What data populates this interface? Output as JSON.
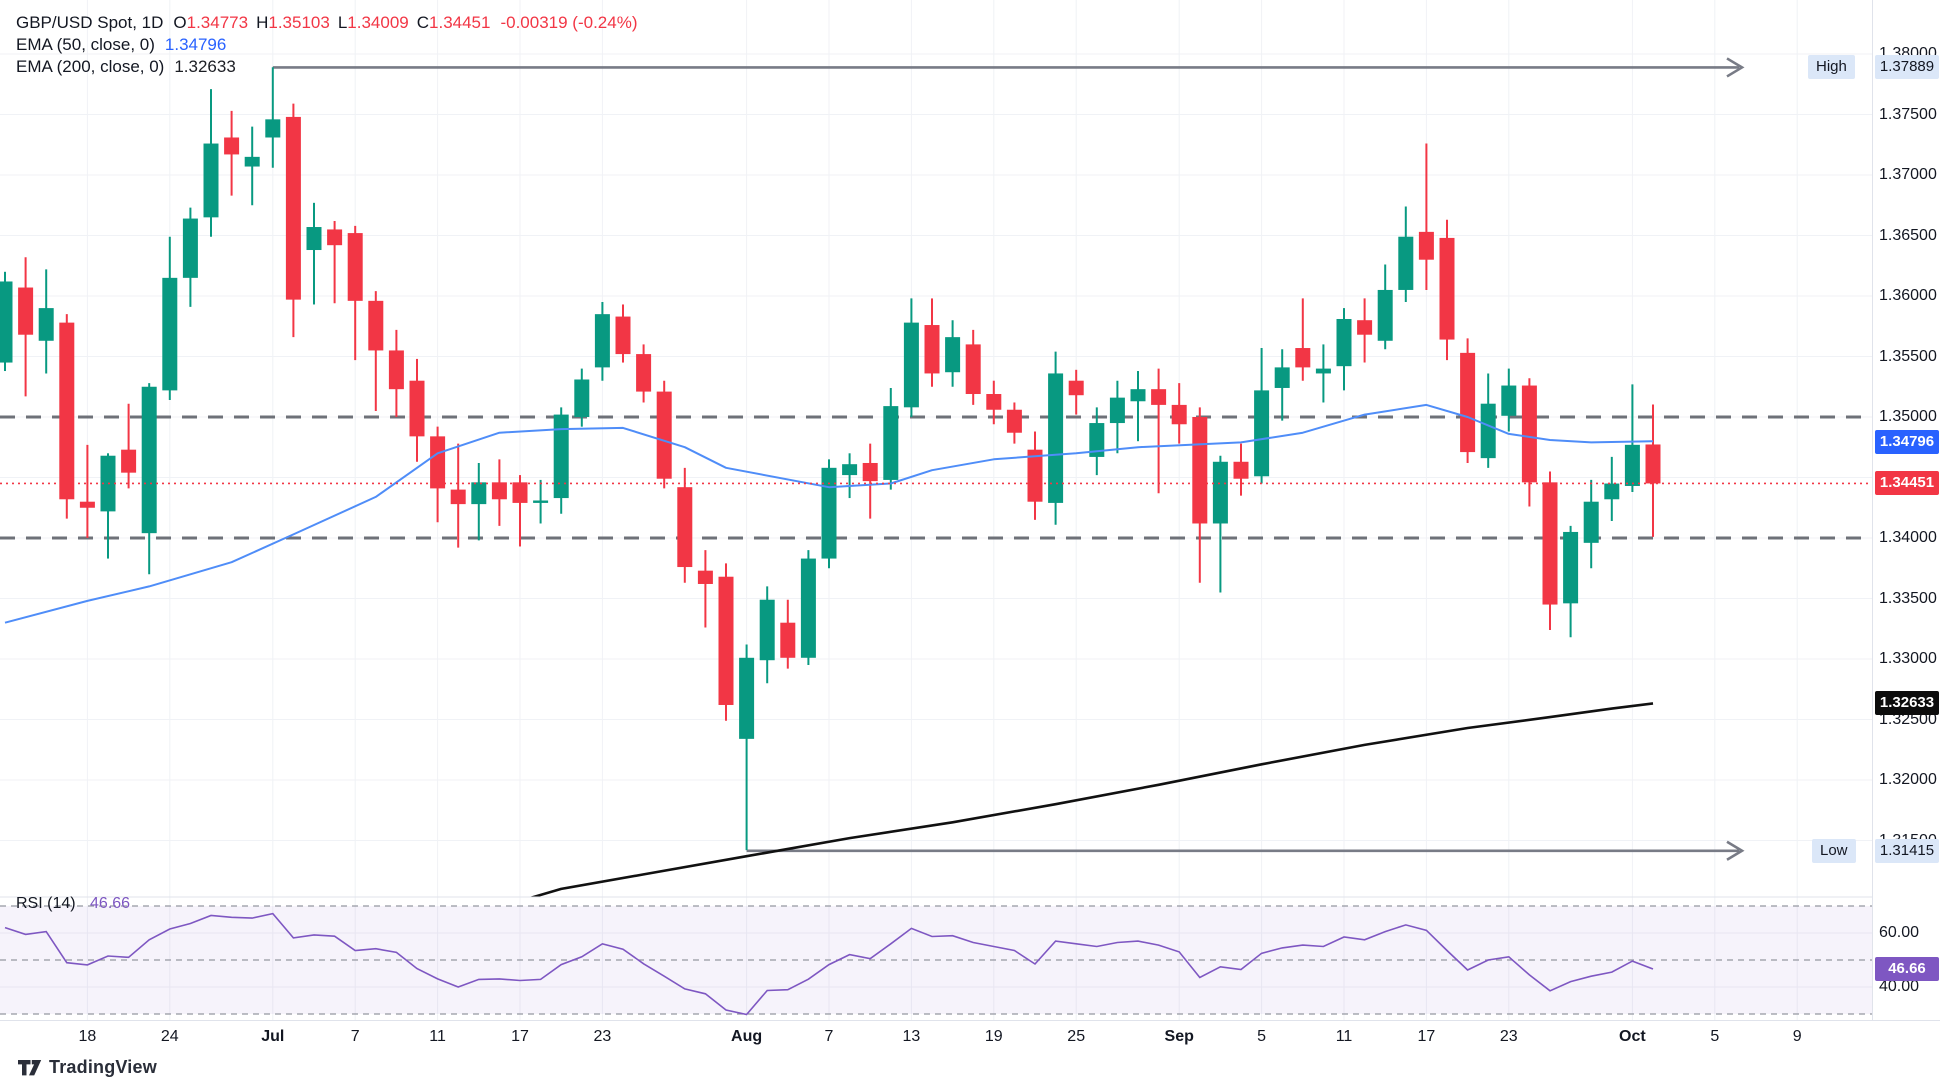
{
  "legend": {
    "title": "GBP/USD Spot, 1D",
    "o_label": "O",
    "o_value": "1.34773",
    "h_label": "H",
    "h_value": "1.35103",
    "l_label": "L",
    "l_value": "1.34009",
    "c_label": "C",
    "c_value": "1.34451",
    "change": "-0.00319 (-0.24%)",
    "ema50_label": "EMA (50, close, 0)",
    "ema50_value": "1.34796",
    "ema200_label": "EMA (200, close, 0)",
    "ema200_value": "1.32633"
  },
  "rsi_legend": {
    "label": "RSI (14)",
    "value": "46.66"
  },
  "markers": {
    "high": {
      "label": "High",
      "value": "1.37889",
      "price": 1.37889,
      "start_index": 13
    },
    "low": {
      "label": "Low",
      "value": "1.31415",
      "price": 1.31415,
      "start_index": 36
    }
  },
  "badges": {
    "ema50": {
      "text": "1.34796",
      "price": 1.34796,
      "color": "#2962ff"
    },
    "last": {
      "text": "1.34451",
      "price": 1.34451,
      "color": "#f23645"
    },
    "ema200": {
      "text": "1.32633",
      "price": 1.32633,
      "color": "#0c0c0c"
    },
    "rsi": {
      "text": "46.66",
      "value": 46.66,
      "color": "#7e57c2"
    }
  },
  "colors": {
    "up": "#089981",
    "down": "#f23645",
    "ema50_line": "#4f8df8",
    "ema200_line": "#111111",
    "rsi_line": "#7e57c2",
    "rsi_band_fill": "rgba(126,87,194,0.07)",
    "grid": "#f0f2f6",
    "level_dash": "#6e7178",
    "arrow": "#787b86",
    "last_price_line": "#f23645",
    "axis_text": "#131722",
    "marker_tag_bg": "#dbe7f8"
  },
  "price_axis_ticks": [
    "1.38000",
    "1.37500",
    "1.37000",
    "1.36500",
    "1.36000",
    "1.35500",
    "1.35000",
    "1.34500",
    "1.34000",
    "1.33500",
    "1.33000",
    "1.32500",
    "1.32000",
    "1.31500"
  ],
  "rsi_axis_ticks": [
    "60.00",
    "40.00"
  ],
  "time_axis_ticks": [
    {
      "i": 4,
      "label": "18"
    },
    {
      "i": 8,
      "label": "24"
    },
    {
      "i": 13,
      "label": "Jul",
      "major": true
    },
    {
      "i": 17,
      "label": "7"
    },
    {
      "i": 21,
      "label": "11"
    },
    {
      "i": 25,
      "label": "17"
    },
    {
      "i": 29,
      "label": "23"
    },
    {
      "i": 36,
      "label": "Aug",
      "major": true
    },
    {
      "i": 40,
      "label": "7"
    },
    {
      "i": 44,
      "label": "13"
    },
    {
      "i": 48,
      "label": "19"
    },
    {
      "i": 52,
      "label": "25"
    },
    {
      "i": 57,
      "label": "Sep",
      "major": true
    },
    {
      "i": 61,
      "label": "5"
    },
    {
      "i": 65,
      "label": "11"
    },
    {
      "i": 69,
      "label": "17"
    },
    {
      "i": 73,
      "label": "23"
    },
    {
      "i": 79,
      "label": "Oct",
      "major": true
    },
    {
      "i": 83,
      "label": "5"
    },
    {
      "i": 87,
      "label": "9"
    }
  ],
  "watermark": {
    "brand": "TradingView"
  },
  "chart_data": {
    "type": "candlestick",
    "symbol": "GBP/USD Spot",
    "interval": "1D",
    "price_range": [
      1.3125,
      1.3805
    ],
    "grid_step": 0.005,
    "levels": {
      "resistance": 1.35,
      "support": 1.34,
      "last_price": 1.34451
    },
    "high_marker": 1.37889,
    "low_marker": 1.31415,
    "candles": [
      [
        1.3545,
        1.362,
        1.3538,
        1.3612
      ],
      [
        1.3607,
        1.3632,
        1.3517,
        1.3568
      ],
      [
        1.3563,
        1.3622,
        1.3536,
        1.359
      ],
      [
        1.3578,
        1.3585,
        1.3416,
        1.3432
      ],
      [
        1.343,
        1.3477,
        1.34,
        1.3425
      ],
      [
        1.3422,
        1.347,
        1.3383,
        1.3468
      ],
      [
        1.3473,
        1.3511,
        1.3441,
        1.3454
      ],
      [
        1.3404,
        1.3528,
        1.337,
        1.3525
      ],
      [
        1.3522,
        1.3649,
        1.3514,
        1.3615
      ],
      [
        1.3615,
        1.3673,
        1.3591,
        1.3664
      ],
      [
        1.3665,
        1.3771,
        1.3649,
        1.3726
      ],
      [
        1.3731,
        1.3753,
        1.3683,
        1.3717
      ],
      [
        1.3707,
        1.374,
        1.3675,
        1.3715
      ],
      [
        1.3731,
        1.3789,
        1.3706,
        1.3746
      ],
      [
        1.3748,
        1.3759,
        1.3566,
        1.3597
      ],
      [
        1.3638,
        1.3677,
        1.3593,
        1.3657
      ],
      [
        1.3655,
        1.3662,
        1.3594,
        1.3642
      ],
      [
        1.3652,
        1.3658,
        1.3547,
        1.3596
      ],
      [
        1.3596,
        1.3604,
        1.3505,
        1.3555
      ],
      [
        1.3555,
        1.3572,
        1.35,
        1.3523
      ],
      [
        1.353,
        1.3548,
        1.3463,
        1.3484
      ],
      [
        1.3484,
        1.3492,
        1.3413,
        1.3441
      ],
      [
        1.344,
        1.3478,
        1.3392,
        1.3428
      ],
      [
        1.3428,
        1.3462,
        1.3398,
        1.3446
      ],
      [
        1.3446,
        1.3465,
        1.341,
        1.3432
      ],
      [
        1.3446,
        1.3452,
        1.3393,
        1.3429
      ],
      [
        1.3429,
        1.3448,
        1.3412,
        1.3431
      ],
      [
        1.3433,
        1.3508,
        1.342,
        1.3502
      ],
      [
        1.35,
        1.354,
        1.3492,
        1.3531
      ],
      [
        1.3541,
        1.3595,
        1.353,
        1.3585
      ],
      [
        1.3583,
        1.3593,
        1.3545,
        1.3552
      ],
      [
        1.3552,
        1.356,
        1.3512,
        1.3521
      ],
      [
        1.3521,
        1.353,
        1.3441,
        1.3449
      ],
      [
        1.3442,
        1.3458,
        1.3363,
        1.3376
      ],
      [
        1.3373,
        1.339,
        1.3326,
        1.3362
      ],
      [
        1.3368,
        1.3379,
        1.3249,
        1.3262
      ],
      [
        1.3234,
        1.3312,
        1.3142,
        1.3301
      ],
      [
        1.3299,
        1.336,
        1.328,
        1.3349
      ],
      [
        1.333,
        1.3349,
        1.3292,
        1.3301
      ],
      [
        1.3301,
        1.339,
        1.3295,
        1.3383
      ],
      [
        1.3383,
        1.3465,
        1.3375,
        1.3458
      ],
      [
        1.3452,
        1.347,
        1.3433,
        1.3461
      ],
      [
        1.3462,
        1.3478,
        1.3416,
        1.3447
      ],
      [
        1.3448,
        1.3524,
        1.344,
        1.3509
      ],
      [
        1.3508,
        1.3598,
        1.35,
        1.3578
      ],
      [
        1.3576,
        1.3598,
        1.3525,
        1.3536
      ],
      [
        1.3537,
        1.358,
        1.3525,
        1.3566
      ],
      [
        1.356,
        1.3572,
        1.351,
        1.3519
      ],
      [
        1.3519,
        1.353,
        1.3494,
        1.3506
      ],
      [
        1.3506,
        1.3512,
        1.3478,
        1.3487
      ],
      [
        1.3473,
        1.3488,
        1.3415,
        1.343
      ],
      [
        1.3429,
        1.3554,
        1.3411,
        1.3536
      ],
      [
        1.353,
        1.3539,
        1.3502,
        1.3518
      ],
      [
        1.3467,
        1.3508,
        1.3452,
        1.3495
      ],
      [
        1.3495,
        1.353,
        1.347,
        1.3516
      ],
      [
        1.3513,
        1.3538,
        1.348,
        1.3523
      ],
      [
        1.3523,
        1.354,
        1.3437,
        1.351
      ],
      [
        1.351,
        1.3528,
        1.3478,
        1.3494
      ],
      [
        1.35,
        1.3508,
        1.3363,
        1.3412
      ],
      [
        1.3412,
        1.3468,
        1.3355,
        1.3463
      ],
      [
        1.3463,
        1.3478,
        1.3435,
        1.3449
      ],
      [
        1.3451,
        1.3557,
        1.3445,
        1.3522
      ],
      [
        1.3524,
        1.3556,
        1.3497,
        1.3541
      ],
      [
        1.3557,
        1.3598,
        1.353,
        1.3541
      ],
      [
        1.3536,
        1.356,
        1.3512,
        1.354
      ],
      [
        1.3542,
        1.359,
        1.3522,
        1.3581
      ],
      [
        1.358,
        1.3598,
        1.3545,
        1.3568
      ],
      [
        1.3563,
        1.3626,
        1.3556,
        1.3605
      ],
      [
        1.3605,
        1.3674,
        1.3595,
        1.3649
      ],
      [
        1.3653,
        1.3726,
        1.3605,
        1.363
      ],
      [
        1.3648,
        1.3663,
        1.3547,
        1.3564
      ],
      [
        1.3553,
        1.3565,
        1.3462,
        1.3471
      ],
      [
        1.3466,
        1.3536,
        1.3458,
        1.3511
      ],
      [
        1.3501,
        1.354,
        1.3488,
        1.3526
      ],
      [
        1.3526,
        1.3532,
        1.3426,
        1.3446
      ],
      [
        1.3446,
        1.3455,
        1.3324,
        1.3345
      ],
      [
        1.3346,
        1.341,
        1.3318,
        1.3405
      ],
      [
        1.3396,
        1.3448,
        1.3375,
        1.343
      ],
      [
        1.3432,
        1.3467,
        1.3414,
        1.3445
      ],
      [
        1.3443,
        1.3527,
        1.3438,
        1.3477
      ],
      [
        1.34773,
        1.35103,
        1.34009,
        1.34451
      ]
    ],
    "ema50_points": [
      [
        0,
        1.333
      ],
      [
        4,
        1.3348
      ],
      [
        7,
        1.336
      ],
      [
        11,
        1.338
      ],
      [
        14,
        1.3403
      ],
      [
        18,
        1.3434
      ],
      [
        21,
        1.347
      ],
      [
        24,
        1.3487
      ],
      [
        27,
        1.349
      ],
      [
        30,
        1.3491
      ],
      [
        33,
        1.3475
      ],
      [
        35,
        1.3458
      ],
      [
        40,
        1.3442
      ],
      [
        43,
        1.3445
      ],
      [
        45,
        1.3456
      ],
      [
        48,
        1.3465
      ],
      [
        52,
        1.347
      ],
      [
        55,
        1.3475
      ],
      [
        60,
        1.3479
      ],
      [
        63,
        1.3487
      ],
      [
        66,
        1.3502
      ],
      [
        69,
        1.351
      ],
      [
        71,
        1.35
      ],
      [
        73,
        1.3486
      ],
      [
        75,
        1.3481
      ],
      [
        77,
        1.3479
      ],
      [
        80,
        1.348
      ]
    ],
    "ema200_points": [
      [
        24,
        1.3095
      ],
      [
        27,
        1.311
      ],
      [
        31,
        1.3122
      ],
      [
        36,
        1.3137
      ],
      [
        41,
        1.3152
      ],
      [
        46,
        1.3165
      ],
      [
        51,
        1.318
      ],
      [
        56,
        1.3196
      ],
      [
        61,
        1.3213
      ],
      [
        66,
        1.3229
      ],
      [
        71,
        1.3243
      ],
      [
        75,
        1.3252
      ],
      [
        78,
        1.3259
      ],
      [
        80,
        1.32633
      ]
    ],
    "rsi": {
      "title": "RSI (14)",
      "levels": {
        "upper": 70,
        "middle": 50,
        "lower": 30
      },
      "ylim_labels": [
        60,
        40
      ],
      "values": [
        62.0,
        59.5,
        60.5,
        49.0,
        48.2,
        51.5,
        51.0,
        57.5,
        61.5,
        63.5,
        66.5,
        65.8,
        65.5,
        67.2,
        58.2,
        59.3,
        58.8,
        53.5,
        54.2,
        52.8,
        46.8,
        43.0,
        40.0,
        42.8,
        43.0,
        42.4,
        42.8,
        48.3,
        51.2,
        56.0,
        54.0,
        48.6,
        44.0,
        39.3,
        37.5,
        31.5,
        29.8,
        38.7,
        39.0,
        42.9,
        48.3,
        52.0,
        50.5,
        56.0,
        61.7,
        58.7,
        59.0,
        56.5,
        55.0,
        53.5,
        48.5,
        57.0,
        56.0,
        55.0,
        56.5,
        57.0,
        55.5,
        53.0,
        43.5,
        47.5,
        46.5,
        52.5,
        54.5,
        55.5,
        55.0,
        58.5,
        57.5,
        60.5,
        63.0,
        61.0,
        53.5,
        46.3,
        50.0,
        51.2,
        44.5,
        38.6,
        42.0,
        44.0,
        45.5,
        49.6,
        46.66
      ]
    }
  }
}
